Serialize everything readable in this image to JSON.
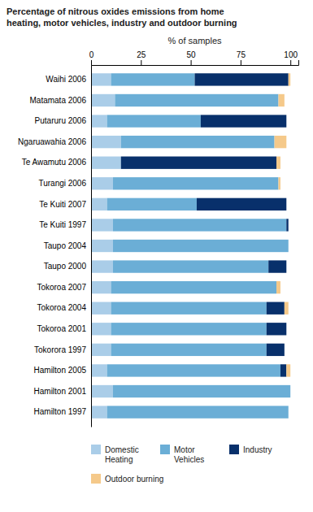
{
  "chart_data": {
    "type": "bar",
    "orientation": "horizontal",
    "stacked": true,
    "grid": false,
    "legend": "bottom",
    "title": "Percentage of nitrous oxides emissions from home\nheating, motor vehicles, industry and outdoor burning",
    "xlabel": "% of samples",
    "categories": [
      "Hamilton 1997",
      "Hamilton 2001",
      "Hamilton 2005",
      "Tokorora 1997",
      "Tokoroa 2001",
      "Tokoroa 2004",
      "Tokoroa 2007",
      "Taupo 2000",
      "Taupo 2004",
      "Te Kuiti 1997",
      "Te Kuiti 2007",
      "Turangi 2006",
      "Te Awamutu 2006",
      "Ngaruawahia 2006",
      "Putaruru 2006",
      "Matamata 2006",
      "Waihi 2006"
    ],
    "series": [
      {
        "name": "Domestic\nHeating",
        "color": "#aacde8",
        "values": [
          8,
          11,
          8,
          10,
          10,
          10,
          10,
          11,
          11,
          11,
          8,
          11,
          15,
          15,
          8,
          12,
          10
        ]
      },
      {
        "name": "Motor\nVehicles",
        "color": "#6baed6",
        "values": [
          91,
          89,
          87,
          78,
          78,
          78,
          83,
          78,
          88,
          87,
          45,
          83,
          0,
          77,
          47,
          82,
          42
        ]
      },
      {
        "name": "Industry",
        "color": "#08306b",
        "values": [
          0,
          0,
          3,
          9,
          10,
          9,
          0,
          9,
          0,
          1,
          45,
          0,
          78,
          0,
          43,
          0,
          47
        ]
      },
      {
        "name": "Outdoor burning",
        "color": "#f5c98a",
        "values": [
          0,
          0,
          2,
          0,
          0,
          2,
          2,
          0,
          0,
          0,
          0,
          1,
          2,
          6,
          0,
          3,
          1
        ]
      }
    ],
    "xlim": [
      0,
      104
    ],
    "xticks": [
      0,
      25,
      50,
      75,
      100
    ]
  }
}
